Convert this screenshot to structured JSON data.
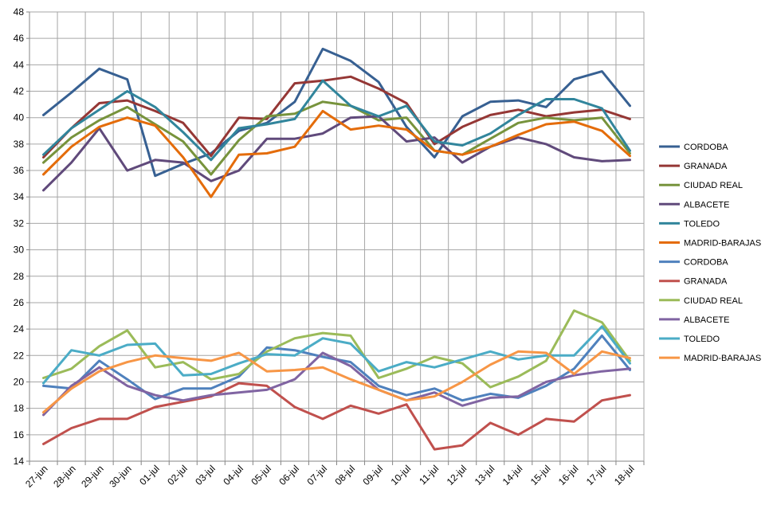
{
  "chart_data": {
    "type": "line",
    "title": "",
    "xlabel": "",
    "ylabel": "",
    "ylim": [
      14,
      48
    ],
    "y_ticks": [
      "14",
      "16",
      "18",
      "20",
      "22",
      "24",
      "26",
      "28",
      "30",
      "32",
      "34",
      "36",
      "38",
      "40",
      "42",
      "44",
      "46",
      "48"
    ],
    "grid": true,
    "legend_position": "right",
    "categories": [
      "27-jun",
      "28-jun",
      "29-jun",
      "30-jun",
      "01-jul",
      "02-jul",
      "03-jul",
      "04-jul",
      "05-jul",
      "06-jul",
      "07-jul",
      "08-jul",
      "09-jul",
      "10-jul",
      "11-jul",
      "12-jul",
      "13-jul",
      "14-jul",
      "15-jul",
      "16-jul",
      "17-jul",
      "18-jul"
    ],
    "series": [
      {
        "name": "CORDOBA",
        "color": "#376092",
        "values": [
          40.2,
          41.9,
          43.7,
          42.9,
          35.6,
          36.5,
          37.3,
          39.0,
          39.6,
          41.2,
          45.2,
          44.3,
          42.7,
          39.3,
          37.0,
          40.1,
          41.2,
          41.3,
          40.8,
          42.9,
          43.5,
          40.9
        ]
      },
      {
        "name": "GRANADA",
        "color": "#953735",
        "values": [
          37.0,
          39.2,
          41.1,
          41.3,
          40.5,
          39.6,
          37.1,
          40.0,
          39.9,
          42.6,
          42.8,
          43.1,
          42.2,
          41.1,
          38.0,
          39.3,
          40.2,
          40.6,
          40.1,
          40.4,
          40.6,
          39.9
        ]
      },
      {
        "name": "CIUDAD REAL",
        "color": "#77933C",
        "values": [
          36.6,
          38.5,
          39.8,
          40.8,
          39.5,
          38.2,
          35.7,
          38.3,
          40.1,
          40.3,
          41.2,
          40.9,
          39.8,
          40.0,
          37.5,
          37.2,
          38.4,
          39.6,
          40.0,
          39.8,
          40.0,
          37.3
        ]
      },
      {
        "name": "ALBACETE",
        "color": "#604A7B",
        "values": [
          34.5,
          36.6,
          39.2,
          36.0,
          36.8,
          36.6,
          35.2,
          36.0,
          38.4,
          38.4,
          38.8,
          40.0,
          40.1,
          38.2,
          38.5,
          36.6,
          37.8,
          38.5,
          38.0,
          37.0,
          36.7,
          36.8
        ]
      },
      {
        "name": "TOLEDO",
        "color": "#31859C",
        "values": [
          37.2,
          39.2,
          40.6,
          42.0,
          40.8,
          38.9,
          36.8,
          39.2,
          39.5,
          39.9,
          42.8,
          40.9,
          40.1,
          40.9,
          38.2,
          37.9,
          38.8,
          40.2,
          41.4,
          41.4,
          40.7,
          37.5
        ]
      },
      {
        "name": "MADRID-BARAJAS",
        "color": "#E46C0A",
        "values": [
          35.7,
          37.8,
          39.3,
          40.0,
          39.4,
          37.0,
          34.0,
          37.2,
          37.3,
          37.8,
          40.5,
          39.1,
          39.4,
          39.1,
          37.5,
          37.2,
          37.8,
          38.7,
          39.5,
          39.7,
          39.0,
          37.1
        ]
      },
      {
        "name": "CORDOBA",
        "color": "#4F81BD",
        "values": [
          19.7,
          19.5,
          21.6,
          20.2,
          18.7,
          19.5,
          19.5,
          20.4,
          22.6,
          22.4,
          21.9,
          21.5,
          19.7,
          19.0,
          19.5,
          18.6,
          19.1,
          18.8,
          19.7,
          21.0,
          23.5,
          20.9
        ]
      },
      {
        "name": "GRANADA",
        "color": "#C0504D",
        "values": [
          15.3,
          16.5,
          17.2,
          17.2,
          18.1,
          18.5,
          18.9,
          19.9,
          19.7,
          18.1,
          17.2,
          18.2,
          17.6,
          18.3,
          14.9,
          15.2,
          16.9,
          16.0,
          17.2,
          17.0,
          18.6,
          19.0
        ]
      },
      {
        "name": "CIUDAD REAL",
        "color": "#9BBB59",
        "values": [
          20.3,
          21.0,
          22.7,
          23.9,
          21.1,
          21.5,
          20.2,
          20.6,
          22.3,
          23.3,
          23.7,
          23.5,
          20.3,
          21.0,
          21.9,
          21.4,
          19.6,
          20.4,
          21.6,
          25.4,
          24.5,
          21.6
        ]
      },
      {
        "name": "ALBACETE",
        "color": "#8064A2",
        "values": [
          17.5,
          19.7,
          21.1,
          19.7,
          19.0,
          18.6,
          19.0,
          19.2,
          19.4,
          20.2,
          22.2,
          21.2,
          19.4,
          18.6,
          19.2,
          18.2,
          18.8,
          18.9,
          20.0,
          20.5,
          20.8,
          21.0
        ]
      },
      {
        "name": "TOLEDO",
        "color": "#4BACC6",
        "values": [
          19.9,
          22.4,
          22.0,
          22.8,
          22.9,
          20.5,
          20.6,
          21.4,
          22.1,
          22.0,
          23.3,
          22.9,
          20.8,
          21.5,
          21.1,
          21.7,
          22.3,
          21.7,
          22.0,
          22.0,
          24.2,
          21.4
        ]
      },
      {
        "name": "MADRID-BARAJAS",
        "color": "#F79646",
        "values": [
          17.7,
          19.5,
          20.8,
          21.5,
          22.0,
          21.8,
          21.6,
          22.2,
          20.8,
          20.9,
          21.1,
          20.2,
          19.4,
          18.6,
          18.9,
          20.0,
          21.3,
          22.3,
          22.2,
          20.6,
          22.3,
          21.8
        ]
      }
    ]
  }
}
